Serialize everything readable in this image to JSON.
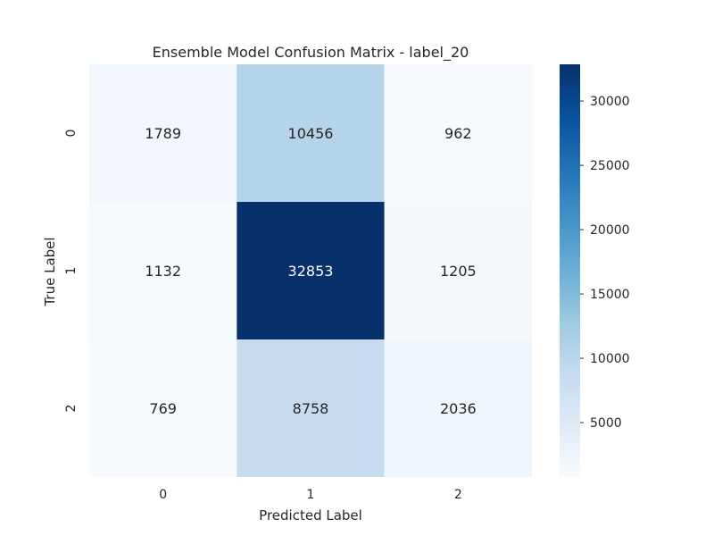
{
  "chart_data": {
    "type": "heatmap",
    "title": "Ensemble Model Confusion Matrix - label_20",
    "xlabel": "Predicted Label",
    "ylabel": "True Label",
    "x_categories": [
      "0",
      "1",
      "2"
    ],
    "y_categories": [
      "0",
      "1",
      "2"
    ],
    "values": [
      [
        1789,
        10456,
        962
      ],
      [
        1132,
        32853,
        1205
      ],
      [
        769,
        8758,
        2036
      ]
    ],
    "colormap": "Blues",
    "colorbar": {
      "min": 769,
      "max": 32853,
      "ticks": [
        5000,
        10000,
        15000,
        20000,
        25000,
        30000
      ],
      "tick_labels": [
        "5000",
        "10000",
        "15000",
        "20000",
        "25000",
        "30000"
      ]
    },
    "grid": false
  }
}
